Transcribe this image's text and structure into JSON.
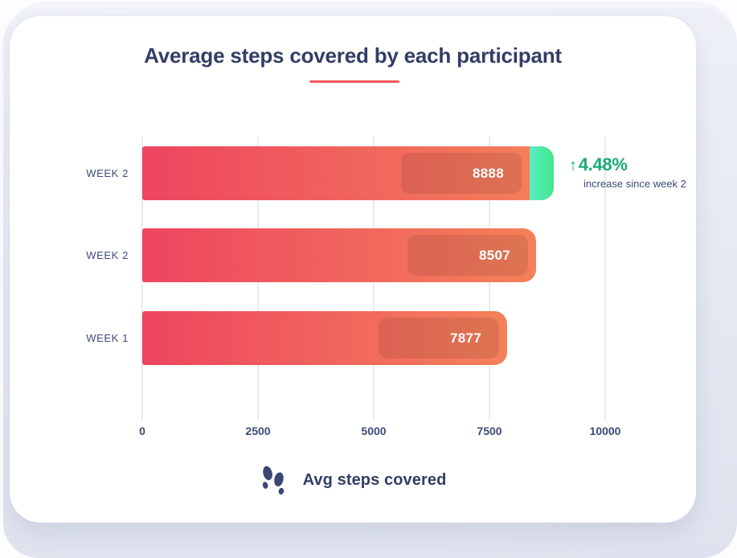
{
  "card": {
    "title": "Average steps covered by each participant"
  },
  "chart_data": {
    "type": "bar",
    "orientation": "horizontal",
    "title": "Average steps covered by each participant",
    "categories": [
      "WEEK 2",
      "WEEK 2",
      "WEEK 1"
    ],
    "values": [
      8888,
      8507,
      7877
    ],
    "xlim": [
      0,
      10000
    ],
    "x_ticks": [
      0,
      2500,
      5000,
      7500,
      10000
    ],
    "grid": true,
    "xlabel": "Avg steps covered",
    "annotation": {
      "arrow": "↑",
      "percent": "4.48%",
      "caption": "increase since week 2",
      "applies_to": "top bar (WEEK 2, 8888)"
    }
  },
  "legend": {
    "icon": "footsteps-icon",
    "label": "Avg steps covered"
  },
  "colors": {
    "navy": "#333d66",
    "underline": "#f4565f",
    "bar-start": "#ee4560",
    "bar-end": "#f4815a",
    "cap-start": "#56efc3",
    "cap-end": "#41e58d",
    "green-text": "#18aa76",
    "grid": "#e9eaef",
    "bg-panel": "#dfe2ee"
  }
}
